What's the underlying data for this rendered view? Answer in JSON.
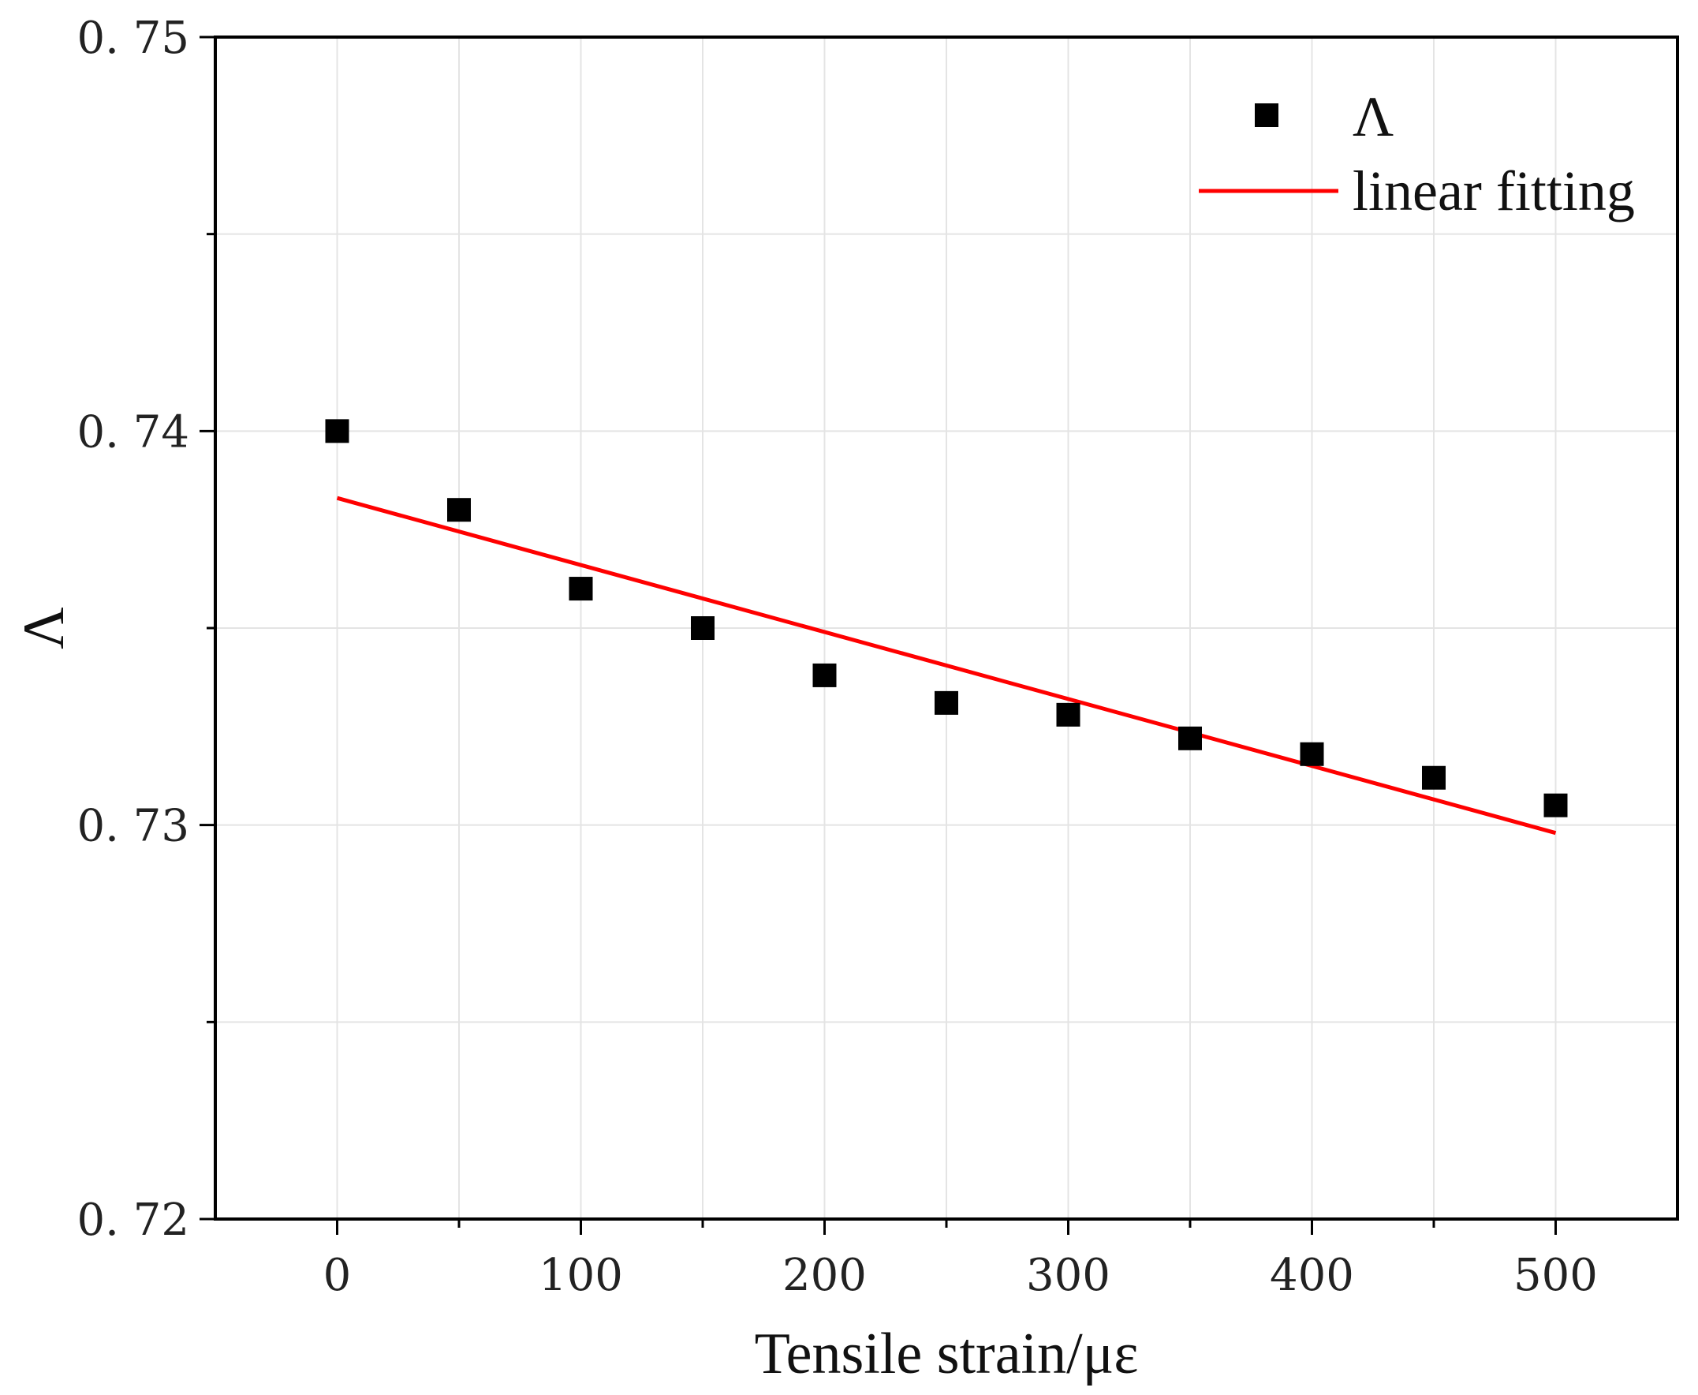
{
  "chart_data": {
    "type": "scatter",
    "title": "",
    "xlabel": "Tensile strain/με",
    "ylabel": "Λ",
    "xlim": [
      -50,
      550
    ],
    "ylim": [
      0.72,
      0.75
    ],
    "x_ticks": [
      0,
      100,
      200,
      300,
      400,
      500
    ],
    "x_tick_labels": [
      "0",
      "100",
      "200",
      "300",
      "400",
      "500"
    ],
    "x_minor_ticks": [
      50,
      150,
      250,
      350,
      450
    ],
    "y_ticks": [
      0.72,
      0.73,
      0.74,
      0.75
    ],
    "y_tick_labels": [
      "0. 72",
      "0. 73",
      "0. 74",
      "0. 75"
    ],
    "y_minor_ticks": [
      0.725,
      0.735,
      0.745
    ],
    "grid": true,
    "legend_position": "top-right",
    "series": [
      {
        "name": "Λ",
        "kind": "scatter",
        "marker": "square",
        "color": "#000000",
        "x": [
          0,
          50,
          100,
          150,
          200,
          250,
          300,
          350,
          400,
          450,
          500
        ],
        "y": [
          0.74,
          0.738,
          0.736,
          0.735,
          0.7338,
          0.7331,
          0.7328,
          0.7322,
          0.7318,
          0.7312,
          0.7305
        ]
      },
      {
        "name": "linear fitting",
        "kind": "line",
        "color": "#ff0000",
        "x": [
          0,
          500
        ],
        "y": [
          0.7383,
          0.7298
        ]
      }
    ]
  }
}
